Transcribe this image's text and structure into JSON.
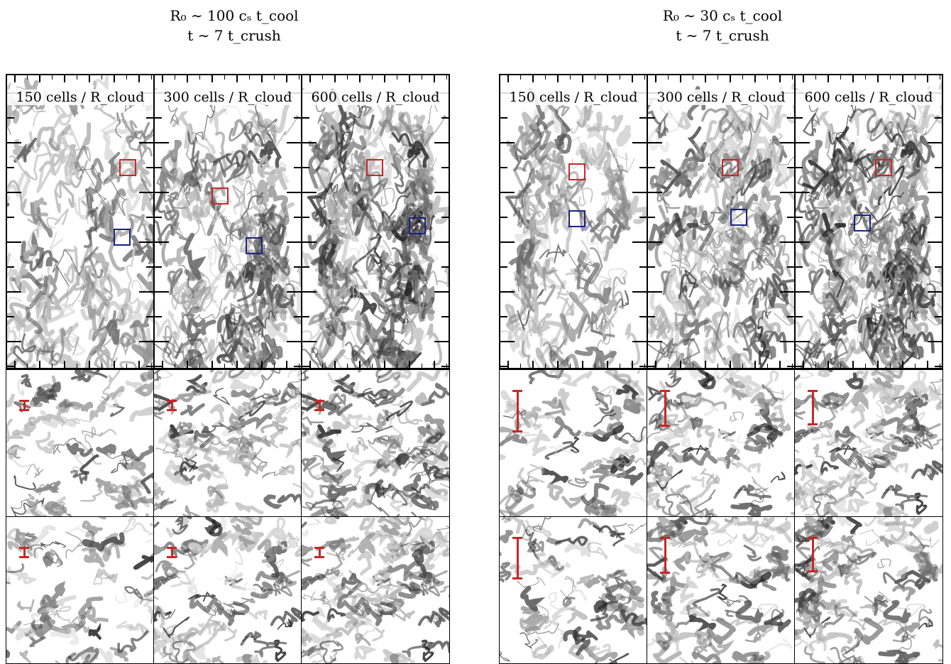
{
  "groups": [
    {
      "title_line1": "R₀ ∼ 100 cₛ t_cool",
      "title_line2": "t ∼ 7 t_crush",
      "panels": [
        {
          "label": "150 cells / R_cloud"
        },
        {
          "label": "300 cells / R_cloud"
        },
        {
          "label": "600 cells / R_cloud"
        }
      ]
    },
    {
      "title_line1": "R₀ ∼ 30 cₛ t_cool",
      "title_line2": "t ∼ 7 t_crush",
      "panels": [
        {
          "label": "150 cells / R_cloud"
        },
        {
          "label": "300 cells / R_cloud"
        },
        {
          "label": "600 cells / R_cloud"
        }
      ]
    }
  ],
  "colors": {
    "red_marker": "#c62828",
    "blue_marker": "#1a237e",
    "scalebar": "#c62828"
  }
}
